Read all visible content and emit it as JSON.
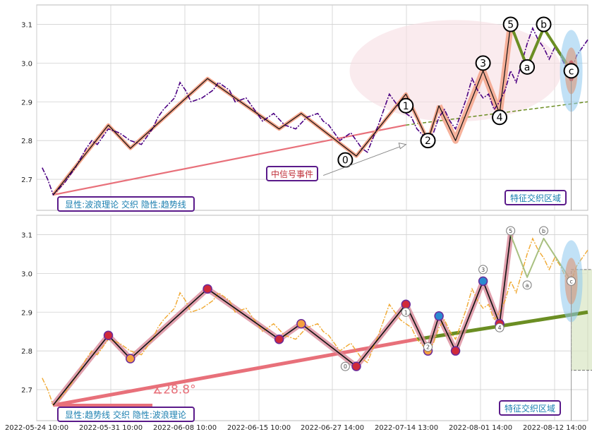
{
  "chart_data": [
    {
      "type": "line",
      "panel": "top",
      "ylim": [
        2.62,
        3.15
      ],
      "yticks": [
        2.7,
        2.8,
        2.9,
        3.0,
        3.1
      ],
      "xlim_index": [
        0,
        100
      ],
      "grid": true,
      "series": [
        {
          "role": "price-dashdot",
          "color": "#4b0082",
          "points": [
            [
              1,
              2.73
            ],
            [
              2,
              2.7
            ],
            [
              3,
              2.66
            ],
            [
              5,
              2.69
            ],
            [
              7,
              2.73
            ],
            [
              9,
              2.78
            ],
            [
              10,
              2.8
            ],
            [
              11,
              2.79
            ],
            [
              13,
              2.83
            ],
            [
              15,
              2.82
            ],
            [
              17,
              2.8
            ],
            [
              19,
              2.79
            ],
            [
              21,
              2.83
            ],
            [
              22,
              2.86
            ],
            [
              23,
              2.88
            ],
            [
              25,
              2.91
            ],
            [
              26,
              2.95
            ],
            [
              27,
              2.93
            ],
            [
              28,
              2.9
            ],
            [
              30,
              2.91
            ],
            [
              32,
              2.93
            ],
            [
              33,
              2.95
            ],
            [
              35,
              2.93
            ],
            [
              36,
              2.9
            ],
            [
              38,
              2.91
            ],
            [
              40,
              2.87
            ],
            [
              41,
              2.85
            ],
            [
              43,
              2.87
            ],
            [
              45,
              2.84
            ],
            [
              47,
              2.83
            ],
            [
              49,
              2.86
            ],
            [
              51,
              2.87
            ],
            [
              52,
              2.85
            ],
            [
              53,
              2.84
            ],
            [
              55,
              2.8
            ],
            [
              57,
              2.82
            ],
            [
              59,
              2.78
            ],
            [
              60,
              2.77
            ],
            [
              62,
              2.84
            ],
            [
              63,
              2.88
            ],
            [
              64,
              2.92
            ],
            [
              66,
              2.88
            ],
            [
              68,
              2.86
            ],
            [
              69,
              2.83
            ],
            [
              71,
              2.8
            ],
            [
              72,
              2.82
            ],
            [
              73,
              2.86
            ],
            [
              74,
              2.88
            ],
            [
              75,
              2.85
            ],
            [
              76,
              2.83
            ],
            [
              77,
              2.87
            ],
            [
              78,
              2.91
            ],
            [
              79,
              2.96
            ],
            [
              80,
              2.93
            ],
            [
              81,
              2.91
            ],
            [
              82,
              2.92
            ],
            [
              83,
              2.88
            ],
            [
              84,
              2.9
            ],
            [
              85,
              2.93
            ],
            [
              86,
              2.98
            ],
            [
              87,
              2.95
            ],
            [
              88,
              3.0
            ],
            [
              89,
              3.05
            ],
            [
              90,
              3.09
            ],
            [
              91,
              3.06
            ],
            [
              92,
              3.04
            ],
            [
              93,
              3.01
            ],
            [
              94,
              3.04
            ],
            [
              95,
              3.02
            ],
            [
              96,
              2.99
            ],
            [
              97,
              2.98
            ],
            [
              98,
              3.02
            ],
            [
              99,
              3.04
            ],
            [
              100,
              3.06
            ]
          ]
        }
      ],
      "wave_points": [
        [
          3,
          2.66
        ],
        [
          13,
          2.84
        ],
        [
          17,
          2.78
        ],
        [
          31,
          2.96
        ],
        [
          44,
          2.83
        ],
        [
          48,
          2.87
        ],
        [
          58,
          2.76
        ],
        [
          67,
          2.92
        ],
        [
          71,
          2.8
        ],
        [
          73,
          2.89
        ],
        [
          76,
          2.8
        ],
        [
          81,
          2.98
        ],
        [
          84,
          2.87
        ],
        [
          86,
          3.1
        ],
        [
          89,
          2.99
        ],
        [
          92,
          3.09
        ],
        [
          97,
          2.98
        ]
      ]
    },
    {
      "type": "line",
      "panel": "bottom",
      "ylim": [
        2.62,
        3.15
      ],
      "yticks": [
        2.7,
        2.8,
        2.9,
        3.0,
        3.1
      ],
      "xlim_index": [
        0,
        100
      ],
      "grid": true
    }
  ],
  "x_tick_labels": [
    "2022-05-24 10:00",
    "2022-05-31 10:00",
    "2022-06-08 10:00",
    "2022-06-15 10:00",
    "2022-06-27 14:00",
    "2022-07-14 13:00",
    "2022-08-01 14:00",
    "2022-08-12 14:00"
  ],
  "top_wave_labels": [
    "0",
    "1",
    "2",
    "3",
    "4",
    "5",
    "a",
    "b",
    "c"
  ],
  "top_annotations": {
    "signal_event": "中信号事件",
    "feature_zone": "特征交织区域",
    "legend_box": "显性:波浪理论 交织 隐性:趋势线"
  },
  "bottom_wave_labels": [
    "0",
    "1",
    "2",
    "3",
    "4",
    "5",
    "a",
    "b",
    "c"
  ],
  "bottom_annotations": {
    "feature_zone": "特征交织区域",
    "legend_box": "显性:趋势线 交织 隐性:波浪理论",
    "angle": "∡28.8°"
  },
  "colors": {
    "price_top": "#4b0082",
    "price_bottom": "#f0a830",
    "trend_red": "#e8707a",
    "trend_green": "#6b8e23",
    "wave_black": "#111111",
    "wave_salmon": "#f4a48a",
    "box_border": "#5a1a8a",
    "box_text": "#1a7fb0",
    "blue_ellipse": "#8ec9ee",
    "zone_fill": "#dce8c8"
  }
}
